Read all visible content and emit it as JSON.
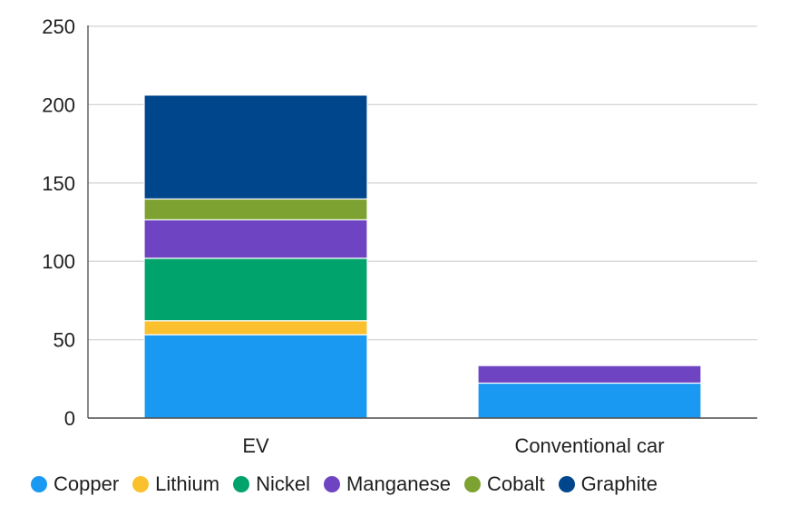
{
  "chart_data": {
    "type": "bar",
    "stacked": true,
    "title": "",
    "xlabel": "",
    "ylabel": "",
    "categories": [
      "EV",
      "Conventional car"
    ],
    "ylim": [
      0,
      250
    ],
    "yticks": [
      "0",
      "50",
      "100",
      "150",
      "200",
      "250"
    ],
    "grid": true,
    "legend_position": "bottom",
    "series": [
      {
        "name": "Copper",
        "color": "#1a99f2",
        "values": [
          53.2,
          22.3
        ]
      },
      {
        "name": "Lithium",
        "color": "#fbc02d",
        "values": [
          8.9,
          0
        ]
      },
      {
        "name": "Nickel",
        "color": "#00a36c",
        "values": [
          39.9,
          0
        ]
      },
      {
        "name": "Manganese",
        "color": "#6e44c2",
        "values": [
          24.5,
          11.2
        ]
      },
      {
        "name": "Cobalt",
        "color": "#7ea232",
        "values": [
          13.3,
          0
        ]
      },
      {
        "name": "Graphite",
        "color": "#00468c",
        "values": [
          66.3,
          0
        ]
      }
    ]
  }
}
